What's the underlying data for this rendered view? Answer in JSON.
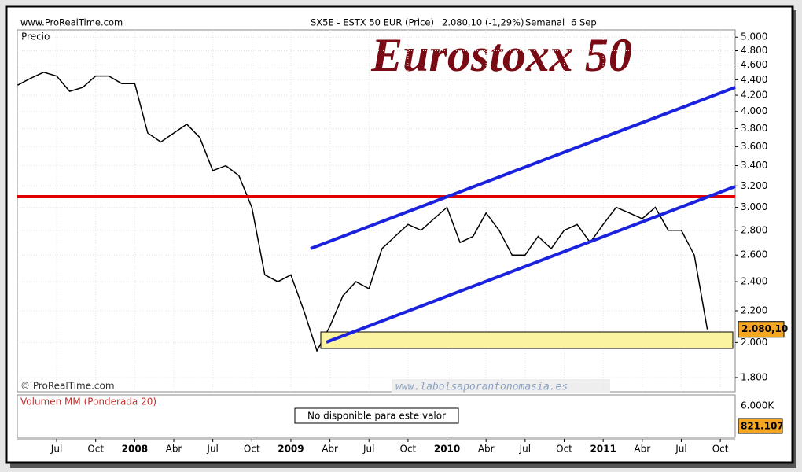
{
  "chart_data": {
    "type": "line",
    "site": "www.ProRealTime.com",
    "symbol": "SX5E - ESTX 50 EUR (Price)",
    "change": "2.080,10 (-1,29%)",
    "period": "Semanal",
    "date": "6 Sep",
    "y_label": "Precio",
    "title": "Eurostoxx 50",
    "copyright": "© ProRealTime.com",
    "watermark": "www.labolsaporantonomasia.es",
    "categories": [
      null,
      null,
      null,
      "Jul",
      null,
      null,
      "Oct",
      null,
      null,
      "2008",
      null,
      null,
      "Abr",
      null,
      null,
      "Jul",
      null,
      null,
      "Oct",
      null,
      null,
      "2009",
      null,
      null,
      "Abr",
      null,
      null,
      "Jul",
      null,
      null,
      "Oct",
      null,
      null,
      "2010",
      null,
      null,
      "Abr",
      null,
      null,
      "Jul",
      null,
      null,
      "Oct",
      null,
      null,
      "2011",
      null,
      null,
      "Abr",
      null,
      null,
      "Jul",
      null,
      null,
      "Oct"
    ],
    "values": [
      4330,
      4420,
      4500,
      4450,
      4250,
      4300,
      4450,
      4450,
      4350,
      4350,
      3750,
      3650,
      3750,
      3850,
      3700,
      3350,
      3400,
      3300,
      3000,
      2450,
      2400,
      2450,
      2200,
      1950,
      2100,
      2300,
      2400,
      2350,
      2650,
      2750,
      2850,
      2800,
      2900,
      3000,
      2700,
      2750,
      2950,
      2800,
      2600,
      2600,
      2750,
      2650,
      2800,
      2850,
      2700,
      2850,
      3000,
      2950,
      2900,
      3000,
      2800,
      2800,
      2600,
      2080,
      null
    ],
    "color": "#000000",
    "log_scale": true,
    "grid": true,
    "ylim": [
      1725,
      5110
    ],
    "yticks": [
      {
        "value": 1800,
        "label": "1.800"
      },
      {
        "value": 2000,
        "label": "2.000"
      },
      {
        "value": 2200,
        "label": "2.200"
      },
      {
        "value": 2400,
        "label": "2.400"
      },
      {
        "value": 2600,
        "label": "2.600"
      },
      {
        "value": 2800,
        "label": "2.800"
      },
      {
        "value": 3000,
        "label": "3.000"
      },
      {
        "value": 3200,
        "label": "3.200"
      },
      {
        "value": 3400,
        "label": "3.400"
      },
      {
        "value": 3600,
        "label": "3.600"
      },
      {
        "value": 3800,
        "label": "3.800"
      },
      {
        "value": 4000,
        "label": "4.000"
      },
      {
        "value": 4200,
        "label": "4.200"
      },
      {
        "value": 4400,
        "label": "4.400"
      },
      {
        "value": 4600,
        "label": "4.600"
      },
      {
        "value": 4800,
        "label": "4.800"
      },
      {
        "value": 5000,
        "label": "5.000"
      }
    ],
    "last_price": {
      "value": 2080.1,
      "label": "2.080,10"
    },
    "volume": {
      "title": "Volumen MM (Ponderada 20)",
      "message": "No disponible para este valor",
      "tick_label": "6.000K",
      "last_label": "821.107"
    }
  }
}
